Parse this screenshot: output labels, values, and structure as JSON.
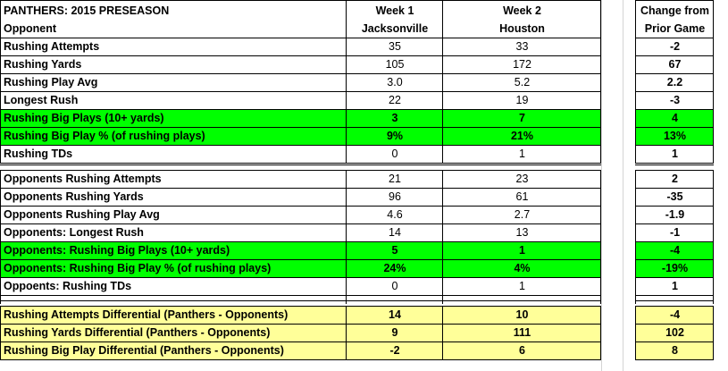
{
  "header": {
    "title": "PANTHERS:  2015 PRESEASON",
    "opponent_label": "Opponent",
    "week1": "Week 1",
    "week2": "Week 2",
    "week1_opp": "Jacksonville",
    "week2_opp": "Houston",
    "change_line1": "Change from",
    "change_line2": "Prior Game"
  },
  "panthers_rows": [
    {
      "label": "Rushing Attempts",
      "w1": "35",
      "w2": "33",
      "chg": "-2",
      "hl": ""
    },
    {
      "label": "Rushing Yards",
      "w1": "105",
      "w2": "172",
      "chg": "67",
      "hl": ""
    },
    {
      "label": "Rushing Play Avg",
      "w1": "3.0",
      "w2": "5.2",
      "chg": "2.2",
      "hl": ""
    },
    {
      "label": "Longest Rush",
      "w1": "22",
      "w2": "19",
      "chg": "-3",
      "hl": ""
    },
    {
      "label": "Rushing Big Plays (10+ yards)",
      "w1": "3",
      "w2": "7",
      "chg": "4",
      "hl": "green"
    },
    {
      "label": "Rushing Big Play % (of rushing plays)",
      "w1": "9%",
      "w2": "21%",
      "chg": "13%",
      "hl": "green"
    },
    {
      "label": "Rushing TDs",
      "w1": "0",
      "w2": "1",
      "chg": "1",
      "hl": ""
    }
  ],
  "opponent_rows": [
    {
      "label": "Opponents Rushing Attempts",
      "w1": "21",
      "w2": "23",
      "chg": "2",
      "hl": ""
    },
    {
      "label": "Opponents Rushing Yards",
      "w1": "96",
      "w2": "61",
      "chg": "-35",
      "hl": ""
    },
    {
      "label": "Opponents Rushing Play Avg",
      "w1": "4.6",
      "w2": "2.7",
      "chg": "-1.9",
      "hl": ""
    },
    {
      "label": "Opponents: Longest Rush",
      "w1": "14",
      "w2": "13",
      "chg": "-1",
      "hl": ""
    },
    {
      "label": "Opponents: Rushing Big Plays (10+ yards)",
      "w1": "5",
      "w2": "1",
      "chg": "-4",
      "hl": "green"
    },
    {
      "label": "Opponents: Rushing Big Play % (of rushing plays)",
      "w1": "24%",
      "w2": "4%",
      "chg": "-19%",
      "hl": "green"
    },
    {
      "label": "Oppoents: Rushing TDs",
      "w1": "0",
      "w2": "1",
      "chg": "1",
      "hl": ""
    }
  ],
  "differential_rows": [
    {
      "label": "Rushing Attempts Differential (Panthers - Opponents)",
      "w1": "14",
      "w2": "10",
      "chg": "-4",
      "hl": "yellow"
    },
    {
      "label": "Rushing Yards Differential (Panthers - Opponents)",
      "w1": "9",
      "w2": "111",
      "chg": "102",
      "hl": "yellow"
    },
    {
      "label": "Rushing Big Play Differential (Panthers - Opponents)",
      "w1": "-2",
      "w2": "6",
      "chg": "8",
      "hl": "yellow"
    }
  ],
  "colors": {
    "green": "#00ff00",
    "yellow": "#ffff99"
  }
}
